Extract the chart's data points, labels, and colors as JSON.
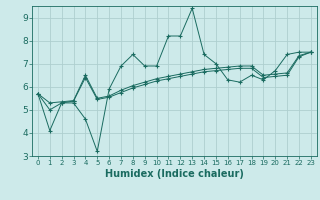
{
  "bg_color": "#cdeaea",
  "grid_color": "#aecfcf",
  "line_color": "#1a6b60",
  "xlabel": "Humidex (Indice chaleur)",
  "xlabel_fontsize": 7,
  "xlim": [
    -0.5,
    23.5
  ],
  "ylim": [
    3,
    9.5
  ],
  "xticks": [
    0,
    1,
    2,
    3,
    4,
    5,
    6,
    7,
    8,
    9,
    10,
    11,
    12,
    13,
    14,
    15,
    16,
    17,
    18,
    19,
    20,
    21,
    22,
    23
  ],
  "yticks": [
    3,
    4,
    5,
    6,
    7,
    8,
    9
  ],
  "series1_x": [
    0,
    1,
    2,
    3,
    4,
    5,
    6,
    7,
    8,
    9,
    10,
    11,
    12,
    13,
    14,
    15,
    16,
    17,
    18,
    19,
    20,
    21,
    22,
    23
  ],
  "series1_y": [
    5.7,
    4.1,
    5.3,
    5.3,
    4.6,
    3.2,
    5.9,
    6.9,
    7.4,
    6.9,
    6.9,
    8.2,
    8.2,
    9.4,
    7.4,
    7.0,
    6.3,
    6.2,
    6.5,
    6.3,
    6.7,
    7.4,
    7.5,
    7.5
  ],
  "series2_x": [
    0,
    1,
    2,
    3,
    4,
    5,
    6,
    7,
    8,
    9,
    10,
    11,
    12,
    13,
    14,
    15,
    16,
    17,
    18,
    19,
    20,
    21,
    22,
    23
  ],
  "series2_y": [
    5.7,
    5.3,
    5.35,
    5.4,
    6.5,
    5.5,
    5.6,
    5.85,
    6.05,
    6.2,
    6.35,
    6.45,
    6.55,
    6.65,
    6.75,
    6.8,
    6.85,
    6.9,
    6.9,
    6.5,
    6.55,
    6.6,
    7.35,
    7.5
  ],
  "series3_x": [
    0,
    1,
    2,
    3,
    4,
    5,
    6,
    7,
    8,
    9,
    10,
    11,
    12,
    13,
    14,
    15,
    16,
    17,
    18,
    19,
    20,
    21,
    22,
    23
  ],
  "series3_y": [
    5.7,
    5.0,
    5.3,
    5.38,
    6.4,
    5.45,
    5.55,
    5.75,
    5.95,
    6.1,
    6.25,
    6.35,
    6.45,
    6.55,
    6.65,
    6.7,
    6.75,
    6.8,
    6.8,
    6.4,
    6.45,
    6.5,
    7.3,
    7.5
  ]
}
